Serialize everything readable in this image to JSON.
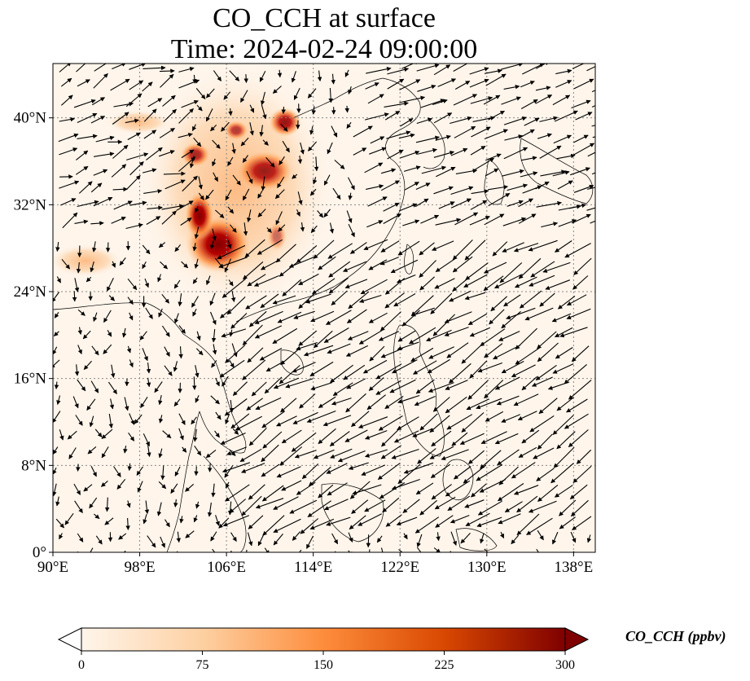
{
  "title": {
    "line1": "CO_CCH at surface",
    "line2": "Time: 2024-02-24 09:00:00"
  },
  "map": {
    "lon_range": [
      90,
      140
    ],
    "lat_range": [
      0,
      45
    ],
    "lon_ticks": [
      "90°E",
      "98°E",
      "106°E",
      "114°E",
      "122°E",
      "130°E",
      "138°E"
    ],
    "lat_ticks": [
      "0°",
      "8°N",
      "16°N",
      "24°N",
      "32°N",
      "40°N"
    ],
    "gridlines": true,
    "field_colormap": [
      "#fff5eb",
      "#fdd0a2",
      "#fd8d3c",
      "#d94801",
      "#7f0000"
    ]
  },
  "colorbar": {
    "label": "CO_CCH (ppbv)",
    "min": 0,
    "max": 300,
    "ticks": [
      "0",
      "75",
      "150",
      "225",
      "300"
    ],
    "extend": "both"
  }
}
